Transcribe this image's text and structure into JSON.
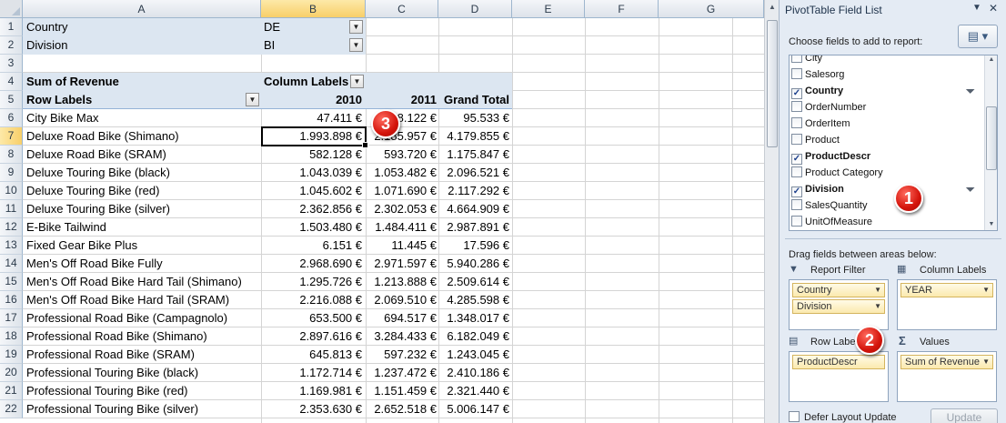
{
  "sheet": {
    "columns": [
      "A",
      "B",
      "C",
      "D",
      "E",
      "F",
      "G"
    ],
    "selected_column": "B",
    "selected_row": 7,
    "row_numbers": [
      1,
      2,
      3,
      4,
      5,
      6,
      7,
      8,
      9,
      10,
      11,
      12,
      13,
      14,
      15,
      16,
      17,
      18,
      19,
      20,
      21,
      22
    ],
    "filters": [
      {
        "label": "Country",
        "value": "DE"
      },
      {
        "label": "Division",
        "value": "BI"
      }
    ],
    "pivot_header": {
      "sum_label": "Sum of Revenue",
      "column_labels": "Column Labels",
      "row_labels": "Row Labels",
      "year_2010": "2010",
      "year_2011": "2011",
      "grand_total": "Grand Total"
    },
    "rows": [
      {
        "label": "City Bike Max",
        "v2010": "47.411 €",
        "v2011": "48.122 €",
        "total": "95.533 €"
      },
      {
        "label": "Deluxe Road Bike (Shimano)",
        "v2010": "1.993.898 €",
        "v2011": "2.185.957 €",
        "total": "4.179.855 €"
      },
      {
        "label": "Deluxe Road Bike (SRAM)",
        "v2010": "582.128 €",
        "v2011": "593.720 €",
        "total": "1.175.847 €"
      },
      {
        "label": "Deluxe Touring Bike (black)",
        "v2010": "1.043.039 €",
        "v2011": "1.053.482 €",
        "total": "2.096.521 €"
      },
      {
        "label": "Deluxe Touring Bike (red)",
        "v2010": "1.045.602 €",
        "v2011": "1.071.690 €",
        "total": "2.117.292 €"
      },
      {
        "label": "Deluxe Touring Bike (silver)",
        "v2010": "2.362.856 €",
        "v2011": "2.302.053 €",
        "total": "4.664.909 €"
      },
      {
        "label": "E-Bike Tailwind",
        "v2010": "1.503.480 €",
        "v2011": "1.484.411 €",
        "total": "2.987.891 €"
      },
      {
        "label": "Fixed Gear Bike Plus",
        "v2010": "6.151 €",
        "v2011": "11.445 €",
        "total": "17.596 €"
      },
      {
        "label": "Men's Off Road Bike Fully",
        "v2010": "2.968.690 €",
        "v2011": "2.971.597 €",
        "total": "5.940.286 €"
      },
      {
        "label": "Men's Off Road Bike Hard Tail (Shimano)",
        "v2010": "1.295.726 €",
        "v2011": "1.213.888 €",
        "total": "2.509.614 €"
      },
      {
        "label": "Men's Off Road Bike Hard Tail (SRAM)",
        "v2010": "2.216.088 €",
        "v2011": "2.069.510 €",
        "total": "4.285.598 €"
      },
      {
        "label": "Professional Road Bike (Campagnolo)",
        "v2010": "653.500 €",
        "v2011": "694.517 €",
        "total": "1.348.017 €"
      },
      {
        "label": "Professional Road Bike (Shimano)",
        "v2010": "2.897.616 €",
        "v2011": "3.284.433 €",
        "total": "6.182.049 €"
      },
      {
        "label": "Professional Road Bike (SRAM)",
        "v2010": "645.813 €",
        "v2011": "597.232 €",
        "total": "1.243.045 €"
      },
      {
        "label": "Professional Touring Bike (black)",
        "v2010": "1.172.714 €",
        "v2011": "1.237.472 €",
        "total": "2.410.186 €"
      },
      {
        "label": "Professional Touring Bike (red)",
        "v2010": "1.169.981 €",
        "v2011": "1.151.459 €",
        "total": "2.321.440 €"
      },
      {
        "label": "Professional Touring Bike (silver)",
        "v2010": "2.353.630 €",
        "v2011": "2.652.518 €",
        "total": "5.006.147 €"
      }
    ]
  },
  "callouts": [
    "3",
    "1",
    "2"
  ],
  "pane": {
    "title": "PivotTable Field List",
    "choose_label": "Choose fields to add to report:",
    "fields": [
      {
        "name": "City",
        "checked": false,
        "filtered": false
      },
      {
        "name": "Salesorg",
        "checked": false,
        "filtered": false
      },
      {
        "name": "Country",
        "checked": true,
        "filtered": true
      },
      {
        "name": "OrderNumber",
        "checked": false,
        "filtered": false
      },
      {
        "name": "OrderItem",
        "checked": false,
        "filtered": false
      },
      {
        "name": "Product",
        "checked": false,
        "filtered": false
      },
      {
        "name": "ProductDescr",
        "checked": true,
        "filtered": false
      },
      {
        "name": "Product Category",
        "checked": false,
        "filtered": false
      },
      {
        "name": "Division",
        "checked": true,
        "filtered": true
      },
      {
        "name": "SalesQuantity",
        "checked": false,
        "filtered": false
      },
      {
        "name": "UnitOfMeasure",
        "checked": false,
        "filtered": false
      }
    ],
    "drag_label": "Drag fields between areas below:",
    "areas": {
      "report_filter": {
        "label": "Report Filter",
        "items": [
          "Country",
          "Division"
        ]
      },
      "column_labels": {
        "label": "Column Labels",
        "items": [
          "YEAR"
        ]
      },
      "row_labels": {
        "label": "Row Labels",
        "items": [
          "ProductDescr"
        ]
      },
      "values": {
        "label": "Values",
        "items": [
          "Sum of Revenue"
        ]
      }
    },
    "defer_label": "Defer Layout Update",
    "update_label": "Update"
  },
  "colors": {
    "pivot_header_fill": "#dce6f1",
    "selection_header": "#f8cf69",
    "callout_red": "#d4140b",
    "pane_background": "#e4ebf4"
  }
}
